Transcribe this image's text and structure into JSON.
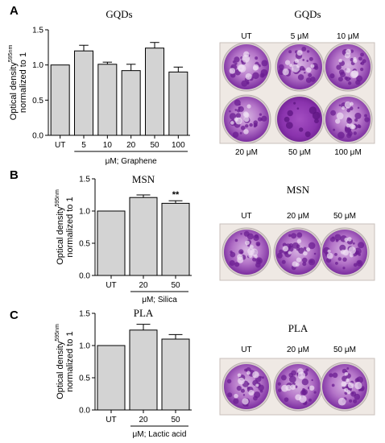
{
  "chart_data": [
    {
      "type": "bar",
      "panel": "A",
      "title": "GQDs",
      "ylabel": "Optical density595nm normalized to 1",
      "ylabel_main": "Optical density",
      "ylabel_sup": "595nm",
      "ylabel_line2": "normalized to 1",
      "xlabel": "μM; Graphene",
      "categories": [
        "UT",
        "5",
        "10",
        "20",
        "50",
        "100"
      ],
      "values": [
        1.0,
        1.2,
        1.01,
        0.92,
        1.24,
        0.9
      ],
      "errors": [
        0.0,
        0.08,
        0.03,
        0.09,
        0.08,
        0.07
      ],
      "significance": [
        "",
        "",
        "",
        "",
        "",
        ""
      ],
      "ylim": [
        0,
        1.5
      ],
      "yticks": [
        "0.0",
        "0.5",
        "1.0",
        "1.5"
      ],
      "bar_color": "#d3d3d3",
      "plate_labels_top": [
        "UT",
        "5 μM",
        "10 μM"
      ],
      "plate_labels_bottom": [
        "20 μM",
        "50 μM",
        "100 μM"
      ]
    },
    {
      "type": "bar",
      "panel": "B",
      "title": "MSN",
      "ylabel": "Optical density595nm normalized to 1",
      "ylabel_main": "Optical density",
      "ylabel_sup": "595nm",
      "ylabel_line2": "normalized to 1",
      "xlabel": "μM; Silica",
      "categories": [
        "UT",
        "20",
        "50"
      ],
      "values": [
        1.0,
        1.21,
        1.12
      ],
      "errors": [
        0.0,
        0.04,
        0.04
      ],
      "significance": [
        "",
        "",
        "**"
      ],
      "ylim": [
        0,
        1.5
      ],
      "yticks": [
        "0.0",
        "0.5",
        "1.0",
        "1.5"
      ],
      "bar_color": "#d3d3d3",
      "plate_title": "MSN",
      "plate_labels_top": [
        "UT",
        "20 μM",
        "50 μM"
      ]
    },
    {
      "type": "bar",
      "panel": "C",
      "title": "PLA",
      "ylabel": "Optical density595nm normalized to 1",
      "ylabel_main": "Optical density",
      "ylabel_sup": "595nm",
      "ylabel_line2": "normalized to 1",
      "xlabel": "μM; Lactic acid",
      "categories": [
        "UT",
        "20",
        "50"
      ],
      "values": [
        1.0,
        1.24,
        1.1
      ],
      "errors": [
        0.0,
        0.09,
        0.07
      ],
      "significance": [
        "",
        "",
        ""
      ],
      "ylim": [
        0,
        1.5
      ],
      "yticks": [
        "0.0",
        "0.5",
        "1.0",
        "1.5"
      ],
      "bar_color": "#d3d3d3",
      "plate_title": "PLA",
      "plate_labels_top": [
        "UT",
        "20 μM",
        "50 μM"
      ]
    }
  ],
  "colors": {
    "plate_purple": "#7a2a9e",
    "plate_light": "#e9d3ee",
    "plate_bg": "#efe9e4"
  }
}
